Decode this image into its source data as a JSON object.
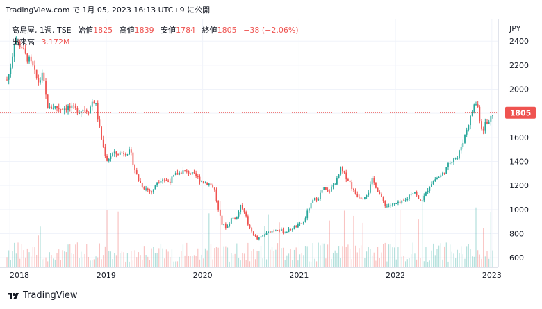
{
  "header": {
    "source_line": "TradingView.com で 1月 05, 2023 16:13 UTC+9 に公開"
  },
  "legend": {
    "symbol": "高島屋, 1週, TSE",
    "open_label": "始値",
    "open": "1825",
    "high_label": "高値",
    "high": "1839",
    "low_label": "安値",
    "low": "1784",
    "close_label": "終値",
    "close": "1805",
    "change": "−38 (−2.06%)",
    "volume_label": "出来高",
    "volume": "3.172M"
  },
  "brand": {
    "name": "TradingView",
    "logo_icon": "tradingview-logo-icon"
  },
  "colors": {
    "up": "#26a69a",
    "down": "#ef5350",
    "price_line": "#ef5350",
    "grid": "#f0f3fa"
  },
  "chart_data": {
    "type": "candlestick",
    "currency_label": "JPY",
    "current_price_label": "1805",
    "current_price": 1805,
    "ylim": [
      520,
      2580
    ],
    "y_ticks": [
      "600",
      "800",
      "1000",
      "1200",
      "1400",
      "1600",
      "1800",
      "2000",
      "2200",
      "2400"
    ],
    "x_ticks": [
      "2018",
      "2019",
      "2020",
      "2021",
      "2022",
      "2023"
    ],
    "x_tick_years": [
      2018,
      2019,
      2020,
      2021,
      2022,
      2023
    ],
    "x_range": [
      2017.97,
      2023.03
    ],
    "grid": true,
    "volume_overlay": true,
    "weekly_close_path": [
      [
        2017.97,
        2080
      ],
      [
        2018.0,
        2150
      ],
      [
        2018.03,
        2300
      ],
      [
        2018.05,
        2420
      ],
      [
        2018.08,
        2380
      ],
      [
        2018.12,
        2360
      ],
      [
        2018.16,
        2280
      ],
      [
        2018.2,
        2240
      ],
      [
        2018.24,
        2180
      ],
      [
        2018.27,
        2100
      ],
      [
        2018.3,
        2060
      ],
      [
        2018.34,
        2120
      ],
      [
        2018.37,
        1960
      ],
      [
        2018.4,
        1830
      ],
      [
        2018.45,
        1860
      ],
      [
        2018.52,
        1840
      ],
      [
        2018.6,
        1850
      ],
      [
        2018.68,
        1830
      ],
      [
        2018.72,
        1820
      ],
      [
        2018.77,
        1840
      ],
      [
        2018.82,
        1820
      ],
      [
        2018.86,
        1910
      ],
      [
        2018.89,
        1880
      ],
      [
        2018.92,
        1720
      ],
      [
        2018.95,
        1590
      ],
      [
        2018.98,
        1480
      ],
      [
        2019.01,
        1410
      ],
      [
        2019.06,
        1460
      ],
      [
        2019.15,
        1470
      ],
      [
        2019.25,
        1480
      ],
      [
        2019.29,
        1350
      ],
      [
        2019.33,
        1250
      ],
      [
        2019.38,
        1190
      ],
      [
        2019.44,
        1160
      ],
      [
        2019.48,
        1140
      ],
      [
        2019.52,
        1230
      ],
      [
        2019.58,
        1260
      ],
      [
        2019.65,
        1230
      ],
      [
        2019.72,
        1290
      ],
      [
        2019.8,
        1320
      ],
      [
        2019.88,
        1300
      ],
      [
        2019.94,
        1270
      ],
      [
        2020.0,
        1230
      ],
      [
        2020.06,
        1220
      ],
      [
        2020.12,
        1180
      ],
      [
        2020.16,
        1000
      ],
      [
        2020.2,
        880
      ],
      [
        2020.25,
        850
      ],
      [
        2020.3,
        930
      ],
      [
        2020.35,
        930
      ],
      [
        2020.4,
        1040
      ],
      [
        2020.44,
        970
      ],
      [
        2020.48,
        850
      ],
      [
        2020.53,
        790
      ],
      [
        2020.57,
        750
      ],
      [
        2020.62,
        780
      ],
      [
        2020.7,
        820
      ],
      [
        2020.78,
        840
      ],
      [
        2020.85,
        810
      ],
      [
        2020.92,
        840
      ],
      [
        2021.0,
        870
      ],
      [
        2021.05,
        900
      ],
      [
        2021.1,
        1010
      ],
      [
        2021.15,
        1080
      ],
      [
        2021.2,
        1100
      ],
      [
        2021.25,
        1180
      ],
      [
        2021.3,
        1140
      ],
      [
        2021.35,
        1200
      ],
      [
        2021.4,
        1250
      ],
      [
        2021.43,
        1340
      ],
      [
        2021.47,
        1290
      ],
      [
        2021.52,
        1240
      ],
      [
        2021.56,
        1160
      ],
      [
        2021.6,
        1120
      ],
      [
        2021.66,
        1100
      ],
      [
        2021.72,
        1150
      ],
      [
        2021.76,
        1250
      ],
      [
        2021.8,
        1190
      ],
      [
        2021.85,
        1100
      ],
      [
        2021.9,
        1030
      ],
      [
        2021.97,
        1040
      ],
      [
        2022.03,
        1050
      ],
      [
        2022.1,
        1070
      ],
      [
        2022.16,
        1140
      ],
      [
        2022.2,
        1150
      ],
      [
        2022.25,
        1060
      ],
      [
        2022.3,
        1110
      ],
      [
        2022.36,
        1210
      ],
      [
        2022.42,
        1260
      ],
      [
        2022.47,
        1280
      ],
      [
        2022.52,
        1330
      ],
      [
        2022.57,
        1400
      ],
      [
        2022.61,
        1440
      ],
      [
        2022.64,
        1420
      ],
      [
        2022.67,
        1500
      ],
      [
        2022.71,
        1590
      ],
      [
        2022.75,
        1700
      ],
      [
        2022.78,
        1770
      ],
      [
        2022.81,
        1860
      ],
      [
        2022.83,
        1890
      ],
      [
        2022.86,
        1840
      ],
      [
        2022.88,
        1720
      ],
      [
        2022.9,
        1660
      ],
      [
        2022.92,
        1690
      ],
      [
        2022.94,
        1740
      ],
      [
        2022.96,
        1690
      ],
      [
        2022.98,
        1760
      ],
      [
        2023.0,
        1830
      ],
      [
        2023.01,
        1805
      ]
    ]
  }
}
